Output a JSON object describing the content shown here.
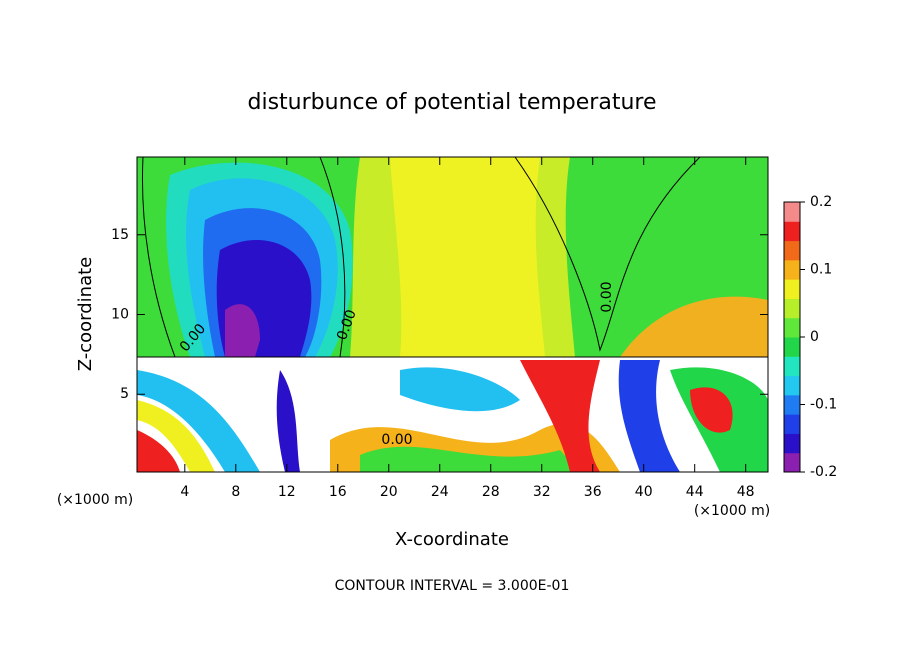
{
  "chart_data": {
    "type": "contour",
    "title": "disturbunce of potential temperature",
    "x_label": "X-coordinate",
    "y_label": "Z-coordinate",
    "x_unit": "(×1000 m)",
    "y_unit": "(×1000 m)",
    "footer": "CONTOUR INTERVAL = 3.000E-01",
    "contour_labels": [
      "0.00",
      "0.00",
      "0.00",
      "0.00"
    ],
    "xlim": [
      0.25,
      49.75
    ],
    "xticks": [
      4,
      8,
      12,
      16,
      20,
      24,
      28,
      32,
      36,
      40,
      44,
      48
    ],
    "ylim": [
      0.125,
      19.875
    ],
    "yticks": [
      5,
      10,
      15
    ],
    "colorbar": {
      "lim": [
        -0.2,
        0.2
      ],
      "ticks": [
        -0.2,
        -0.1,
        0,
        0.1,
        0.2
      ],
      "colors": [
        "#8a1fb0",
        "#2a10c8",
        "#1f3fe8",
        "#1f7cf2",
        "#22c8f0",
        "#22e6c0",
        "#22d64a",
        "#5fe83a",
        "#b6ee2a",
        "#f0f020",
        "#f5b21a",
        "#f06a1a",
        "#ee2020",
        "#f58a8a"
      ]
    }
  }
}
